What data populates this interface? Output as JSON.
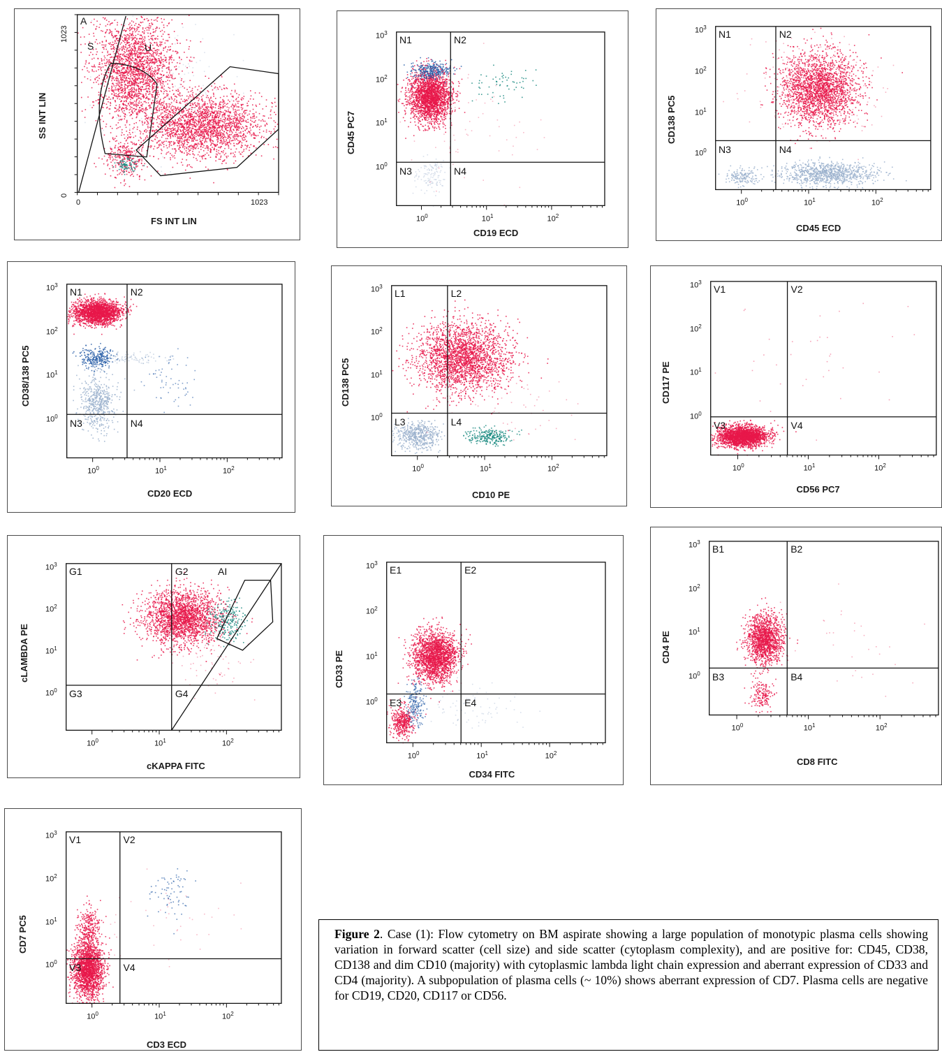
{
  "figure": {
    "caption": {
      "label": "Figure 2",
      "text": ". Case (1): Flow cytometry on BM aspirate showing a large population of monotypic plasma cells showing variation in forward scatter (cell size) and side scatter (cytoplasm complexity), and are positive for: CD45, CD38, CD138 and dim CD10 (majority) with cytoplasmic lambda light chain expression and aberrant expression of CD33 and CD4 (majority).  A subpopulation of plasma cells (~ 10%) shows aberrant expression of CD7. Plasma cells are negative for CD19, CD20, CD117 or CD56."
    },
    "colors": {
      "plasma": "#e8174a",
      "lymph": "#2a5fa8",
      "other": "#9ab0cc",
      "teal": "#1a8a80"
    }
  },
  "chart_data": [
    {
      "type": "scatter",
      "xlabel": "FS INT LIN",
      "ylabel": "SS INT LIN",
      "x_ticks": [
        "0",
        "1023"
      ],
      "y_ticks": [
        "0",
        "1023"
      ],
      "gates": [
        "A",
        "S",
        "U"
      ]
    },
    {
      "type": "scatter",
      "xlabel": "CD19 ECD",
      "ylabel": "CD45 PC7",
      "log_scale": true,
      "quadrants": [
        "N1",
        "N2",
        "N3",
        "N4"
      ]
    },
    {
      "type": "scatter",
      "xlabel": "CD45 ECD",
      "ylabel": "CD138 PC5",
      "log_scale": true,
      "quadrants": [
        "N1",
        "N2",
        "N3",
        "N4"
      ]
    },
    {
      "type": "scatter",
      "xlabel": "CD20 ECD",
      "ylabel": "CD38/138 PC5",
      "log_scale": true,
      "quadrants": [
        "N1",
        "N2",
        "N3",
        "N4"
      ]
    },
    {
      "type": "scatter",
      "xlabel": "CD10 PE",
      "ylabel": "CD138 PC5",
      "log_scale": true,
      "quadrants": [
        "L1",
        "L2",
        "L3",
        "L4"
      ]
    },
    {
      "type": "scatter",
      "xlabel": "CD56 PC7",
      "ylabel": "CD117 PE",
      "log_scale": true,
      "quadrants": [
        "V1",
        "V2",
        "V3",
        "V4"
      ]
    },
    {
      "type": "scatter",
      "xlabel": "cKAPPA FITC",
      "ylabel": "cLAMBDA PE",
      "log_scale": true,
      "quadrants": [
        "G1",
        "G2",
        "G3",
        "G4"
      ],
      "gates": [
        "AI"
      ]
    },
    {
      "type": "scatter",
      "xlabel": "CD34 FITC",
      "ylabel": "CD33 PE",
      "log_scale": true,
      "quadrants": [
        "E1",
        "E2",
        "E3",
        "E4"
      ]
    },
    {
      "type": "scatter",
      "xlabel": "CD8 FITC",
      "ylabel": "CD4 PE",
      "log_scale": true,
      "quadrants": [
        "B1",
        "B2",
        "B3",
        "B4"
      ]
    },
    {
      "type": "scatter",
      "xlabel": "CD3 ECD",
      "ylabel": "CD7 PC5",
      "log_scale": true,
      "quadrants": [
        "V1",
        "V2",
        "V3",
        "V4"
      ]
    }
  ]
}
